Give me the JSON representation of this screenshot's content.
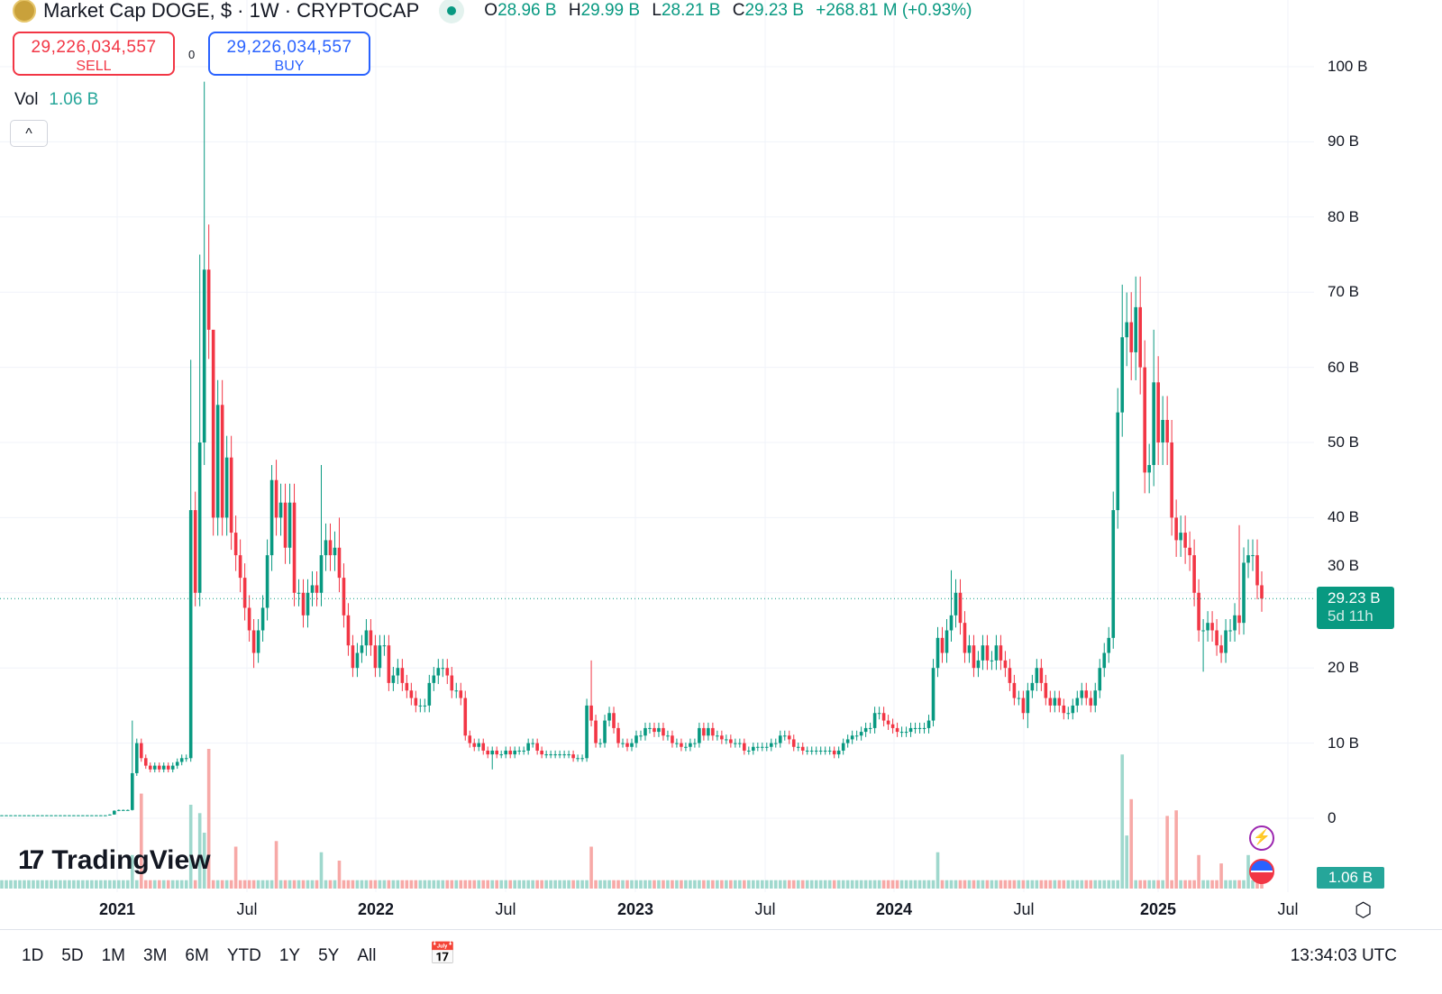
{
  "header": {
    "title": "Market Cap DOGE, $ · 1W · CRYPTOCAP",
    "o_label": "O",
    "o": "28.96 B",
    "h_label": "H",
    "h": "29.99 B",
    "l_label": "L",
    "l": "28.21 B",
    "c_label": "C",
    "c": "29.23 B",
    "change": "+268.81 M (+0.93%)"
  },
  "trade": {
    "sell_price": "29,226,034,557",
    "sell_label": "SELL",
    "buy_price": "29,226,034,557",
    "buy_label": "BUY",
    "spread": "0"
  },
  "volume": {
    "label": "Vol",
    "value": "1.06 B"
  },
  "collapse_icon": "^",
  "price_tag": {
    "price": "29.23 B",
    "countdown": "5d 11h"
  },
  "volume_tag": "1.06 B",
  "yaxis": [
    "100 B",
    "90 B",
    "80 B",
    "70 B",
    "60 B",
    "50 B",
    "40 B",
    "30 B",
    "20 B",
    "10 B",
    "0"
  ],
  "xaxis": [
    {
      "t": "2021",
      "year": true
    },
    {
      "t": "Jul"
    },
    {
      "t": "2022",
      "year": true
    },
    {
      "t": "Jul"
    },
    {
      "t": "2023",
      "year": true
    },
    {
      "t": "Jul"
    },
    {
      "t": "2024",
      "year": true
    },
    {
      "t": "Jul"
    },
    {
      "t": "2025",
      "year": true
    },
    {
      "t": "Jul"
    }
  ],
  "ranges": [
    "1D",
    "5D",
    "1M",
    "3M",
    "6M",
    "YTD",
    "1Y",
    "5Y",
    "All"
  ],
  "clock": "13:34:03 UTC",
  "watermark": "TradingView",
  "colors": {
    "up": "#089981",
    "down": "#f23645",
    "up_vol": "#9fd8cd",
    "down_vol": "#f7a9a7"
  },
  "chart_data": {
    "type": "candlestick",
    "interval": "1W",
    "unit": "B USD",
    "ylim": [
      0,
      100
    ],
    "closes": [
      0.4,
      0.4,
      0.4,
      0.4,
      0.4,
      0.4,
      0.4,
      0.4,
      0.4,
      0.4,
      0.4,
      0.4,
      0.4,
      0.4,
      0.4,
      0.4,
      0.4,
      0.4,
      0.4,
      0.4,
      0.4,
      0.4,
      0.4,
      0.4,
      0.5,
      1.0,
      1.1,
      1.1,
      1.1,
      6,
      10,
      8,
      7,
      6.5,
      7,
      6.5,
      7,
      6.5,
      7,
      7.5,
      8,
      8,
      41,
      30,
      50,
      73,
      65,
      40,
      55,
      40,
      48,
      38,
      35,
      32,
      28,
      25,
      22,
      25,
      28,
      35,
      45,
      40,
      42,
      36,
      42,
      30,
      30,
      27,
      30,
      31,
      30,
      35,
      37,
      35,
      36,
      32,
      27,
      23,
      20,
      22,
      23,
      25,
      23,
      20,
      23,
      23,
      18,
      19,
      20,
      18,
      17,
      16,
      15,
      15,
      15,
      18,
      19,
      20,
      20,
      19,
      17,
      17,
      16,
      11,
      10,
      9.5,
      10,
      9,
      8.5,
      9,
      8.5,
      8.5,
      9,
      8.5,
      9,
      9,
      9,
      10,
      10,
      9,
      8.5,
      8.5,
      8.5,
      8.5,
      8.5,
      8.5,
      8.5,
      8,
      8,
      8,
      15,
      13,
      10,
      10,
      13,
      14,
      12,
      10,
      10,
      9.5,
      10,
      11,
      11,
      12,
      12,
      11.5,
      12,
      11,
      11,
      10,
      10,
      9.5,
      9.5,
      10,
      10,
      12,
      11,
      12,
      11,
      11,
      10.5,
      10.5,
      10,
      10,
      10,
      9,
      9,
      9.5,
      9.5,
      9.5,
      9.5,
      10,
      10,
      11,
      11,
      10.5,
      9.5,
      9.5,
      9,
      9,
      9,
      9,
      9,
      9,
      9,
      8.5,
      9,
      10,
      10.5,
      11,
      11,
      11.5,
      12,
      12,
      14,
      14,
      13,
      12.5,
      12,
      11.5,
      11.5,
      11.5,
      12,
      12,
      12,
      12,
      13,
      20,
      24,
      22,
      25,
      27,
      30,
      26,
      22,
      23,
      20,
      21,
      23,
      21,
      21,
      23,
      21,
      20,
      18,
      16,
      16,
      14,
      17,
      18,
      20,
      18,
      16,
      15,
      16,
      15,
      14,
      14,
      15,
      16,
      17,
      16,
      15,
      17,
      20,
      22,
      24,
      41,
      54,
      64,
      66,
      62,
      68,
      60,
      46,
      47,
      58,
      50,
      53,
      50,
      40,
      37,
      38,
      36,
      35,
      30,
      25,
      25,
      26,
      25,
      23,
      22,
      25,
      25,
      27,
      26,
      34,
      35,
      35,
      31,
      29.23
    ],
    "notable_highs": {
      "29": 13,
      "42": 61,
      "44": 75,
      "45": 98,
      "46": 79,
      "47": 62,
      "60": 47,
      "71": 47,
      "75": 40,
      "131": 21,
      "211": 33,
      "249": 71,
      "251": 70,
      "256": 65,
      "275": 39
    },
    "notable_lows": {
      "56": 20,
      "109": 6.5,
      "267": 19.5,
      "228": 12
    },
    "volume_default": 0.3,
    "volume_spikes": {
      "29": 1.2,
      "31": 3.4,
      "42": 3,
      "44": 2.7,
      "45": 2,
      "46": 5,
      "52": 1.5,
      "61": 1.7,
      "71": 1.3,
      "75": 1,
      "131": 1.5,
      "208": 1.3,
      "249": 4.8,
      "250": 1.9,
      "251": 3.2,
      "259": 2.6,
      "261": 2.8,
      "266": 1.2,
      "271": 0.9,
      "277": 1.2,
      "280": 1.06
    }
  }
}
